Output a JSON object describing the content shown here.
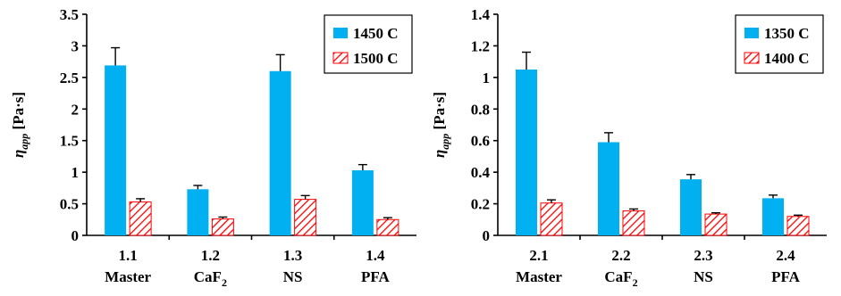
{
  "chart_data": [
    {
      "type": "bar",
      "categories": [
        "1.1",
        "1.2",
        "1.3",
        "1.4"
      ],
      "sublabels": [
        "Master",
        "CaF",
        "NS",
        "PFA"
      ],
      "sublabel_subscripts": [
        "",
        "2",
        "",
        ""
      ],
      "ylabel_symbol": "η",
      "ylabel_sub": "app",
      "ylabel_unit": " [Pa·s]",
      "ylim": [
        0,
        3.5
      ],
      "yticks": [
        "0",
        "0.5",
        "1",
        "1.5",
        "2",
        "2.5",
        "3",
        "3.5"
      ],
      "ytick_values": [
        0,
        0.5,
        1,
        1.5,
        2,
        2.5,
        3,
        3.5
      ],
      "series": [
        {
          "name": "1450 C",
          "values": [
            2.69,
            0.73,
            2.6,
            1.03
          ],
          "errors": [
            0.28,
            0.06,
            0.26,
            0.09
          ],
          "style": "solid",
          "color": "#00B0F0"
        },
        {
          "name": "1500 C",
          "values": [
            0.53,
            0.26,
            0.57,
            0.25
          ],
          "errors": [
            0.05,
            0.03,
            0.06,
            0.03
          ],
          "style": "hatch",
          "color": "#FF0000"
        }
      ],
      "legend_position": "top-right"
    },
    {
      "type": "bar",
      "categories": [
        "2.1",
        "2.2",
        "2.3",
        "2.4"
      ],
      "sublabels": [
        "Master",
        "CaF",
        "NS",
        "PFA"
      ],
      "sublabel_subscripts": [
        "",
        "2",
        "",
        ""
      ],
      "ylabel_symbol": "η",
      "ylabel_sub": "app",
      "ylabel_unit": " [Pa·s]",
      "ylim": [
        0,
        1.4
      ],
      "yticks": [
        "0",
        "0.2",
        "0.4",
        "0.6",
        "0.8",
        "1",
        "1.2",
        "1.4"
      ],
      "ytick_values": [
        0,
        0.2,
        0.4,
        0.6,
        0.8,
        1,
        1.2,
        1.4
      ],
      "series": [
        {
          "name": "1350 C",
          "values": [
            1.05,
            0.59,
            0.355,
            0.235
          ],
          "errors": [
            0.11,
            0.06,
            0.03,
            0.02
          ],
          "style": "solid",
          "color": "#00B0F0"
        },
        {
          "name": "1400 C",
          "values": [
            0.205,
            0.155,
            0.135,
            0.12
          ],
          "errors": [
            0.02,
            0.012,
            0.008,
            0.008
          ],
          "style": "hatch",
          "color": "#FF0000"
        }
      ],
      "legend_position": "top-right"
    }
  ]
}
